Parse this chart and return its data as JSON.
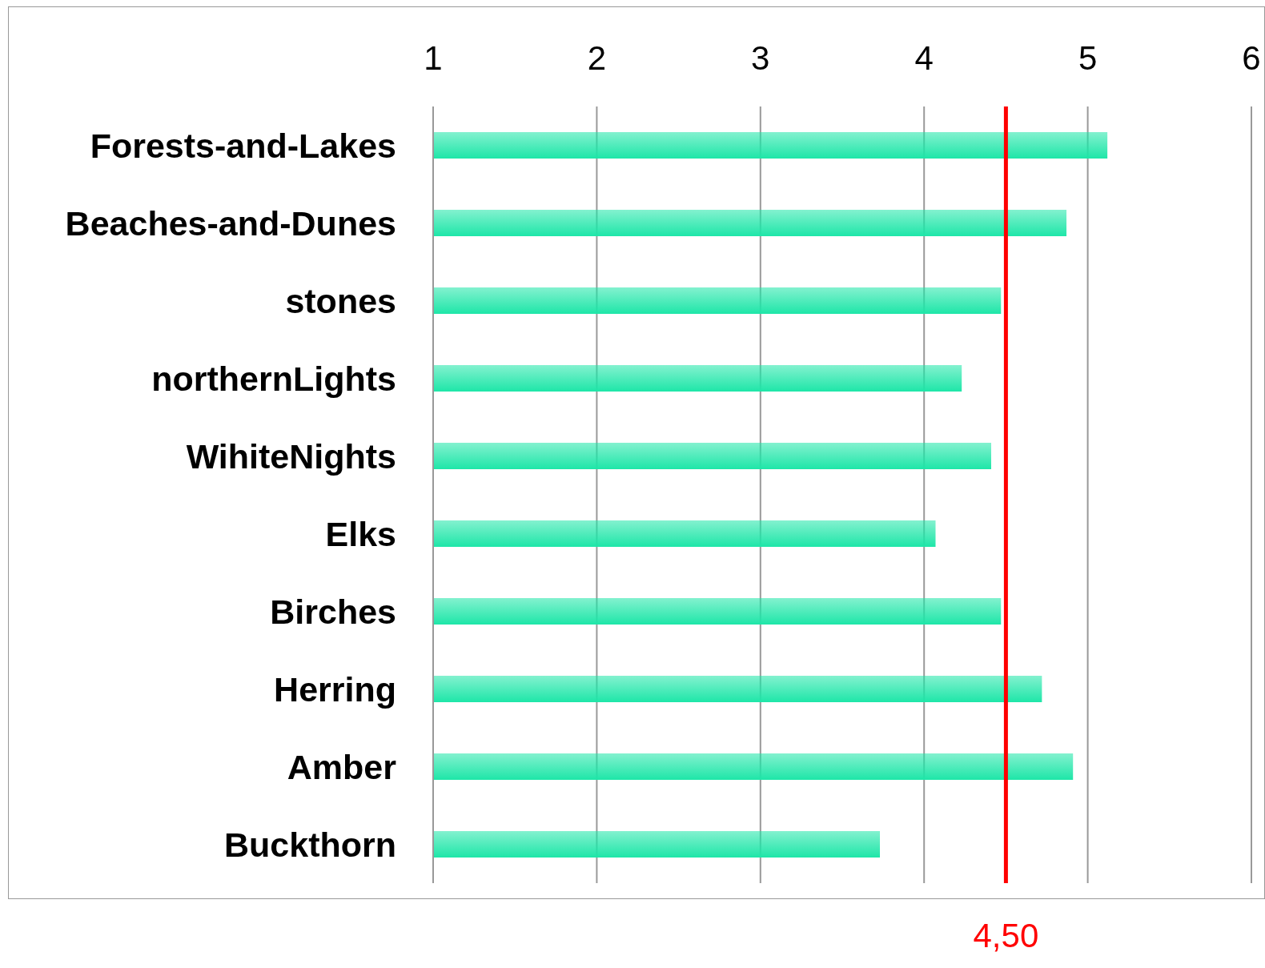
{
  "chart_data": {
    "type": "bar",
    "orientation": "horizontal",
    "categories": [
      "Forests-and-Lakes",
      "Beaches-and-Dunes",
      "stones",
      "northernLights",
      "WihiteNights",
      "Elks",
      "Birches",
      "Herring",
      "Amber",
      "Buckthorn"
    ],
    "values": [
      5.12,
      4.87,
      4.47,
      4.23,
      4.41,
      4.07,
      4.47,
      4.72,
      4.91,
      3.73
    ],
    "color": "#1ee6a8",
    "xlim": [
      1,
      6
    ],
    "xticks": [
      1,
      2,
      3,
      4,
      5,
      6
    ],
    "grid": "x",
    "ref_lines": [
      {
        "axis": "x",
        "value": 4.5,
        "label": "4,50",
        "color": "#ff0000"
      }
    ]
  }
}
